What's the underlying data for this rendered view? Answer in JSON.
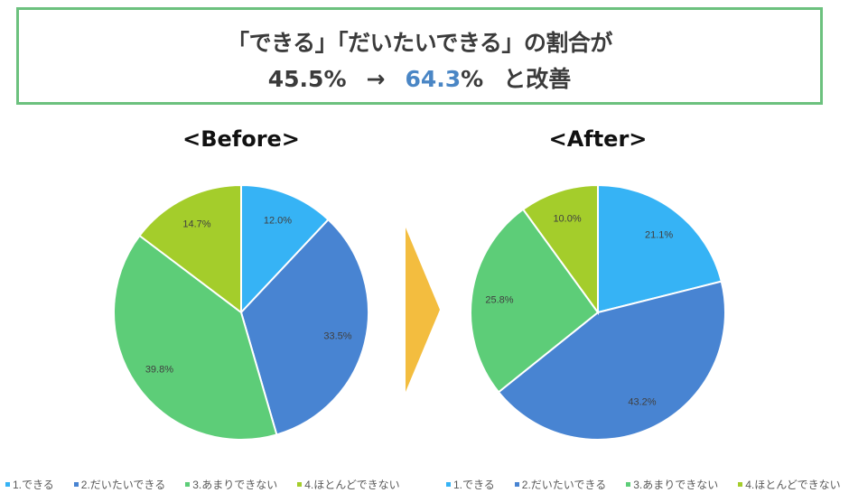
{
  "headline": {
    "line1": "「できる」「だいたいできる」の割合が",
    "before_value": "45.5%",
    "arrow": "→",
    "after_value_accent": "64.3",
    "after_value_suffix": "%",
    "suffix": "と改善"
  },
  "colors": {
    "border": "#6cc17e",
    "accent": "#4a86c5",
    "arrow": "#f3bd3f"
  },
  "chart_data": [
    {
      "type": "pie",
      "title": "<Before>",
      "categories": [
        "1.できる",
        "2.だいたいできる",
        "3.あまりできない",
        "4.ほとんどできない"
      ],
      "values": [
        12.0,
        33.5,
        39.8,
        14.7
      ],
      "labels": [
        "12.0%",
        "33.5%",
        "39.8%",
        "14.7%"
      ],
      "colors": [
        "#36b3f5",
        "#4884d2",
        "#5dcd78",
        "#a4cd2b"
      ],
      "start_angle": "top, clockwise",
      "legend_position": "bottom"
    },
    {
      "type": "pie",
      "title": "<After>",
      "categories": [
        "1.できる",
        "2.だいたいできる",
        "3.あまりできない",
        "4.ほとんどできない"
      ],
      "values": [
        21.1,
        43.2,
        25.8,
        10.0
      ],
      "labels": [
        "21.1%",
        "43.2%",
        "25.8%",
        "10.0%"
      ],
      "colors": [
        "#36b3f5",
        "#4884d2",
        "#5dcd78",
        "#a4cd2b"
      ],
      "start_angle": "top, clockwise",
      "legend_position": "bottom"
    }
  ]
}
